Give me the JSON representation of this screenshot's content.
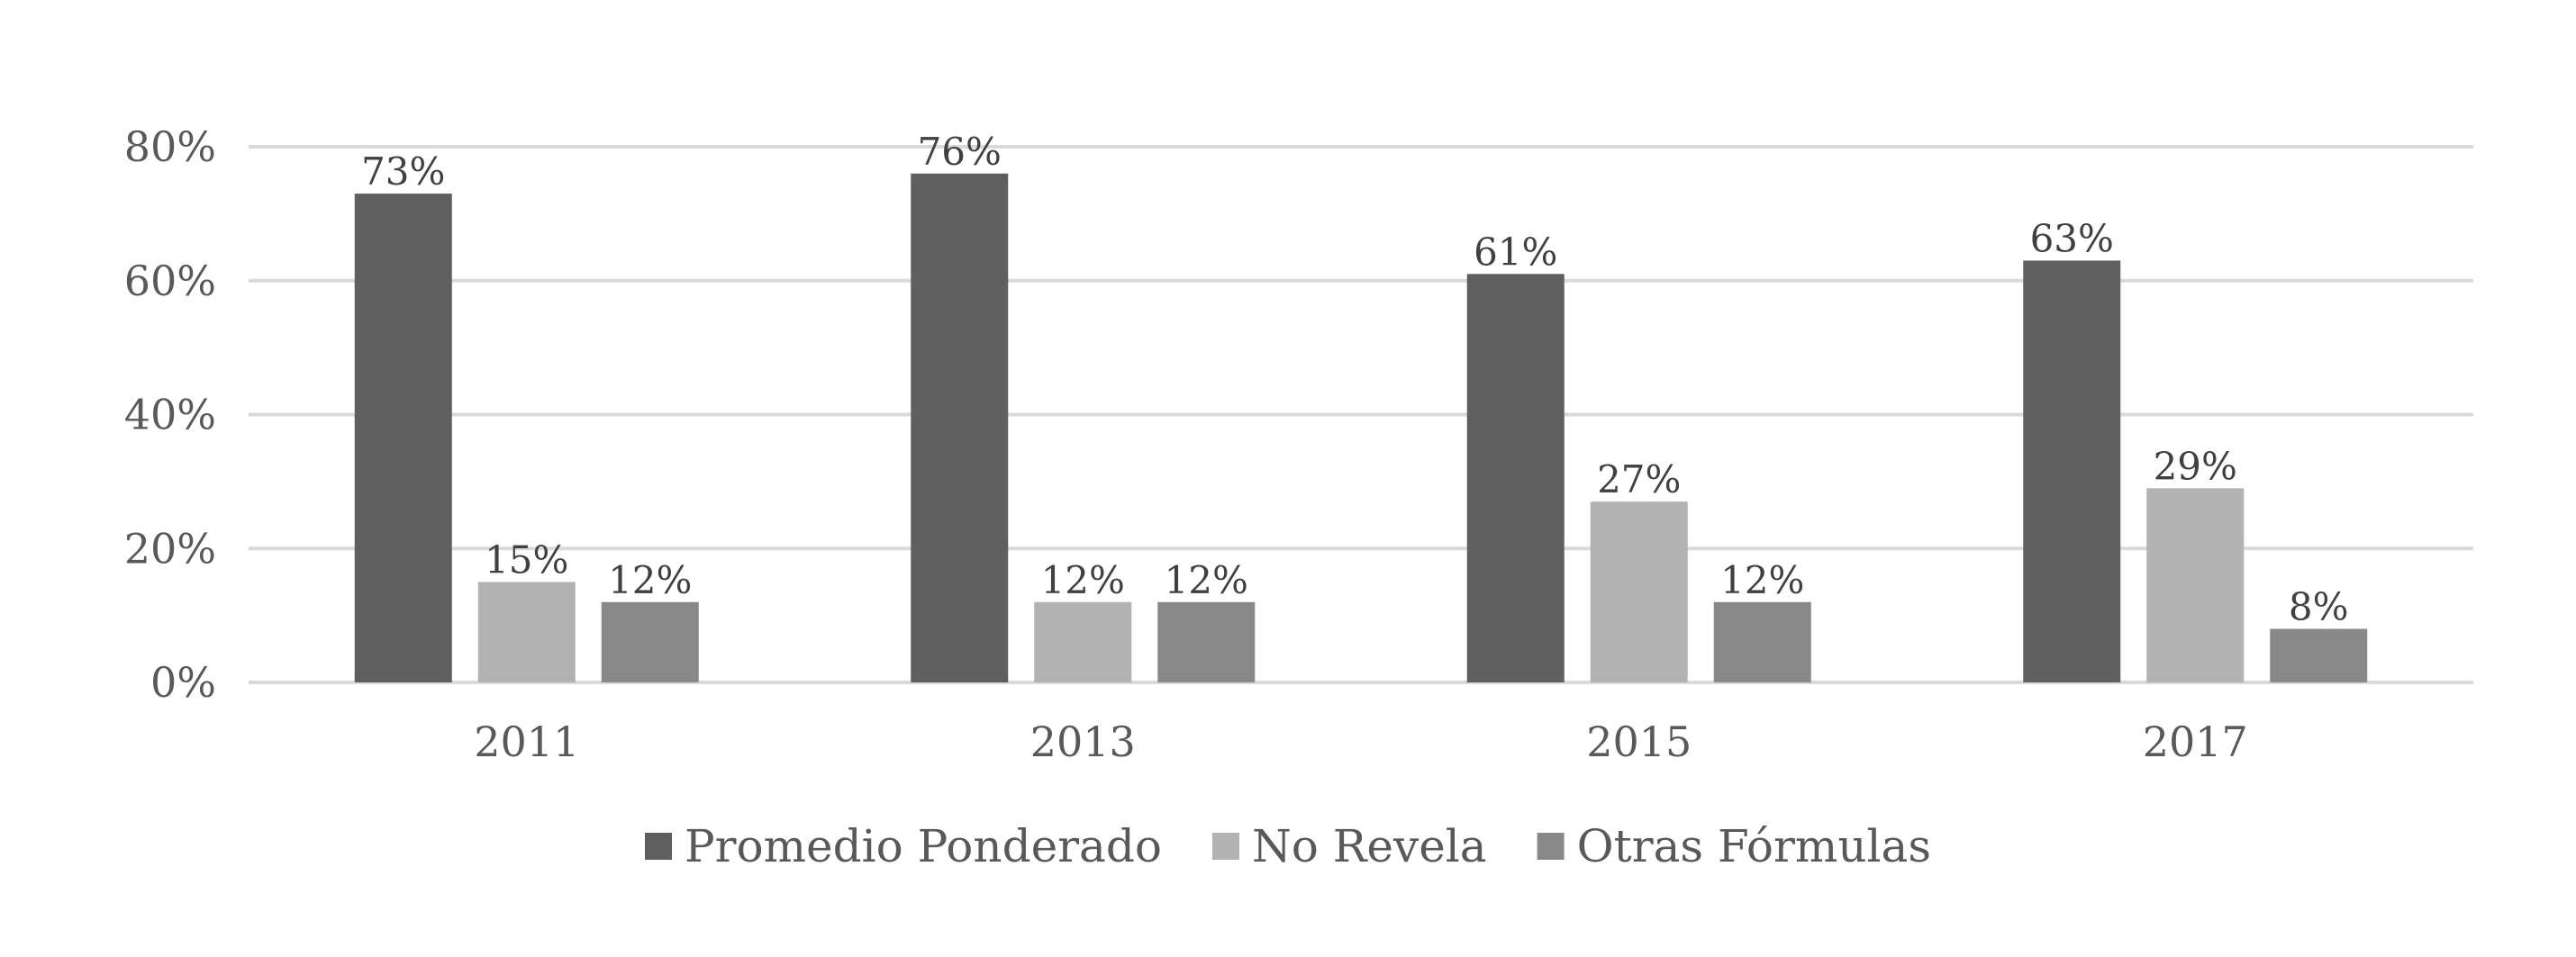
{
  "chart_data": {
    "type": "bar",
    "categories": [
      "2011",
      "2013",
      "2015",
      "2017"
    ],
    "series": [
      {
        "name": "Promedio Ponderado",
        "values": [
          73,
          76,
          61,
          63
        ],
        "labels": [
          "73%",
          "76%",
          "61%",
          "63%"
        ],
        "color": "#5f5f5f"
      },
      {
        "name": "No Revela",
        "values": [
          15,
          12,
          27,
          29
        ],
        "labels": [
          "15%",
          "12%",
          "27%",
          "29%"
        ],
        "color": "#b2b2b2"
      },
      {
        "name": "Otras Fórmulas",
        "values": [
          12,
          12,
          12,
          8
        ],
        "labels": [
          "12%",
          "12%",
          "12%",
          "8%"
        ],
        "color": "#888888"
      }
    ],
    "y_ticks": [
      0,
      20,
      40,
      60,
      80
    ],
    "y_tick_labels": [
      "0%",
      "20%",
      "40%",
      "60%",
      "80%"
    ],
    "ylim": [
      0,
      80
    ],
    "grid": true,
    "legend_position": "bottom"
  }
}
